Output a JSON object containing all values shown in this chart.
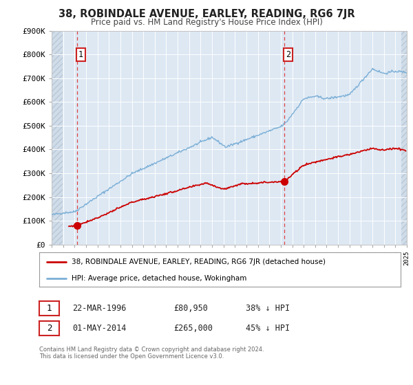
{
  "title": "38, ROBINDALE AVENUE, EARLEY, READING, RG6 7JR",
  "subtitle": "Price paid vs. HM Land Registry's House Price Index (HPI)",
  "legend_label_red": "38, ROBINDALE AVENUE, EARLEY, READING, RG6 7JR (detached house)",
  "legend_label_blue": "HPI: Average price, detached house, Wokingham",
  "red_color": "#cc0000",
  "blue_color": "#7aaed6",
  "bg_color": "#ffffff",
  "plot_bg_color": "#dde8f3",
  "hatch_color": "#c8d4e0",
  "annotation1_date": "22-MAR-1996",
  "annotation1_price": "£80,950",
  "annotation1_hpi": "38% ↓ HPI",
  "annotation2_date": "01-MAY-2014",
  "annotation2_price": "£265,000",
  "annotation2_hpi": "45% ↓ HPI",
  "footer": "Contains HM Land Registry data © Crown copyright and database right 2024.\nThis data is licensed under the Open Government Licence v3.0.",
  "xmin": 1994,
  "xmax": 2025,
  "ymin": 0,
  "ymax": 900000,
  "yticks": [
    0,
    100000,
    200000,
    300000,
    400000,
    500000,
    600000,
    700000,
    800000,
    900000
  ],
  "purchase1_x": 1996.23,
  "purchase1_y": 80950,
  "purchase2_x": 2014.33,
  "purchase2_y": 265000,
  "vline1_x": 1996.23,
  "vline2_x": 2014.33
}
